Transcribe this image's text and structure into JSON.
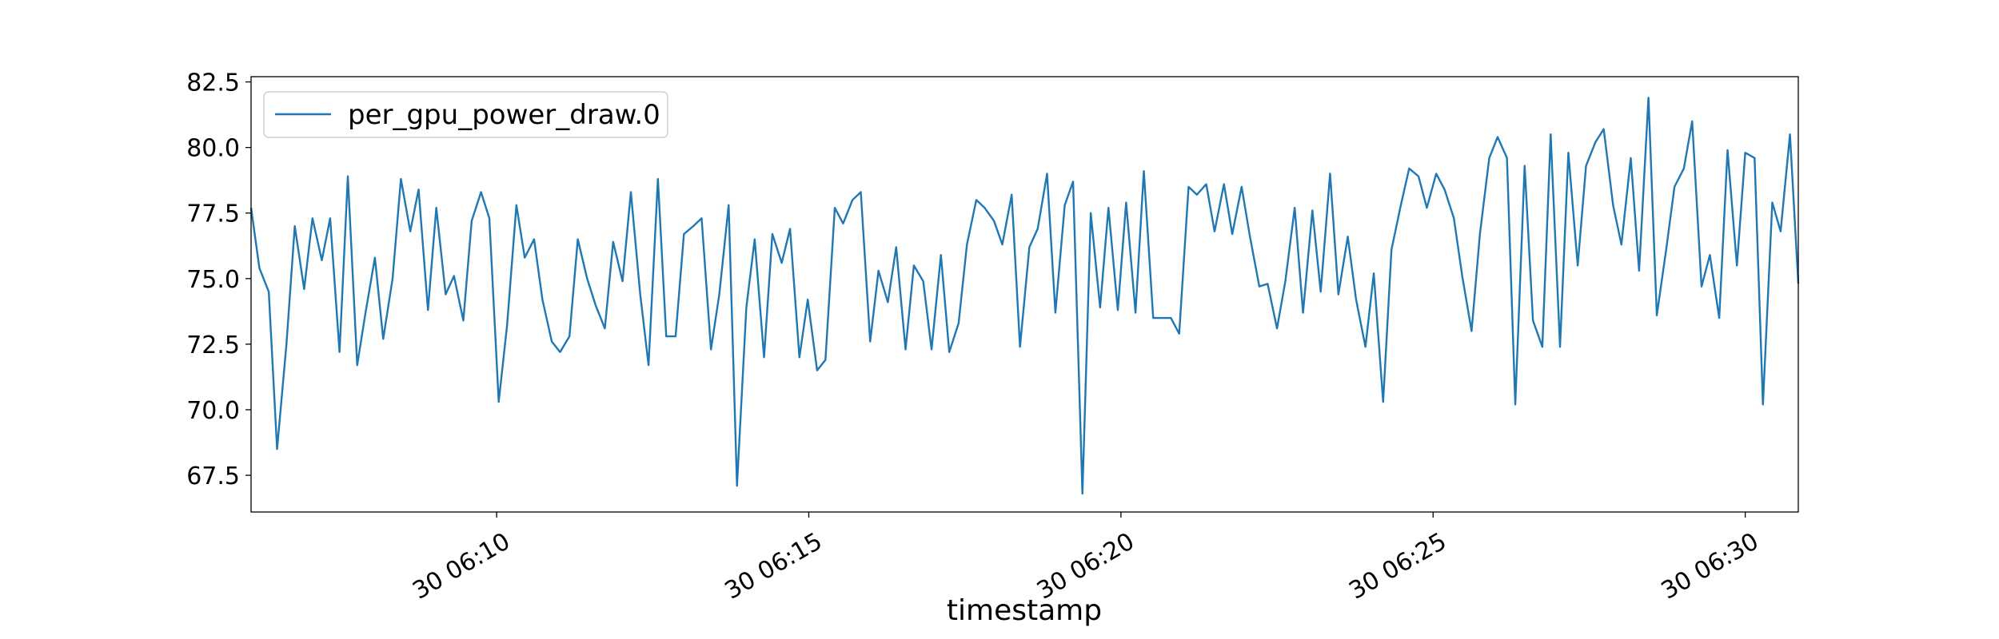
{
  "chart_data": {
    "type": "line",
    "x_label": "timestamp",
    "x": [
      "30 06:06:04",
      "30 06:06:12",
      "30 06:06:21",
      "30 06:06:29",
      "30 06:06:38",
      "30 06:06:46",
      "30 06:06:55",
      "30 06:07:03",
      "30 06:07:12",
      "30 06:07:20",
      "30 06:07:29",
      "30 06:07:37",
      "30 06:07:46",
      "30 06:07:54",
      "30 06:08:03",
      "30 06:08:11",
      "30 06:08:20",
      "30 06:08:28",
      "30 06:08:37",
      "30 06:08:45",
      "30 06:08:54",
      "30 06:09:02",
      "30 06:09:11",
      "30 06:09:19",
      "30 06:09:28",
      "30 06:09:36",
      "30 06:09:45",
      "30 06:09:53",
      "30 06:10:02",
      "30 06:10:10",
      "30 06:10:19",
      "30 06:10:27",
      "30 06:10:36",
      "30 06:10:44",
      "30 06:10:53",
      "30 06:11:01",
      "30 06:11:10",
      "30 06:11:18",
      "30 06:11:27",
      "30 06:11:35",
      "30 06:11:44",
      "30 06:11:52",
      "30 06:12:01",
      "30 06:12:09",
      "30 06:12:18",
      "30 06:12:26",
      "30 06:12:35",
      "30 06:12:43",
      "30 06:12:52",
      "30 06:13:00",
      "30 06:13:09",
      "30 06:13:17",
      "30 06:13:26",
      "30 06:13:34",
      "30 06:13:43",
      "30 06:13:51",
      "30 06:14:00",
      "30 06:14:08",
      "30 06:14:17",
      "30 06:14:25",
      "30 06:14:34",
      "30 06:14:42",
      "30 06:14:51",
      "30 06:14:59",
      "30 06:15:08",
      "30 06:15:16",
      "30 06:15:25",
      "30 06:15:33",
      "30 06:15:42",
      "30 06:15:50",
      "30 06:15:59",
      "30 06:16:07",
      "30 06:16:16",
      "30 06:16:24",
      "30 06:16:33",
      "30 06:16:41",
      "30 06:16:50",
      "30 06:16:58",
      "30 06:17:07",
      "30 06:17:15",
      "30 06:17:24",
      "30 06:17:32",
      "30 06:17:41",
      "30 06:17:49",
      "30 06:17:58",
      "30 06:18:06",
      "30 06:18:15",
      "30 06:18:23",
      "30 06:18:32",
      "30 06:18:40",
      "30 06:18:49",
      "30 06:18:57",
      "30 06:19:06",
      "30 06:19:14",
      "30 06:19:23",
      "30 06:19:31",
      "30 06:19:40",
      "30 06:19:48",
      "30 06:19:57",
      "30 06:20:05",
      "30 06:20:14",
      "30 06:20:22",
      "30 06:20:31",
      "30 06:20:39",
      "30 06:20:48",
      "30 06:20:56",
      "30 06:21:05",
      "30 06:21:13",
      "30 06:21:22",
      "30 06:21:30",
      "30 06:21:39",
      "30 06:21:47",
      "30 06:21:56",
      "30 06:22:04",
      "30 06:22:13",
      "30 06:22:21",
      "30 06:22:30",
      "30 06:22:38",
      "30 06:22:47",
      "30 06:22:55",
      "30 06:23:04",
      "30 06:23:12",
      "30 06:23:21",
      "30 06:23:29",
      "30 06:23:38",
      "30 06:23:46",
      "30 06:23:55",
      "30 06:24:03",
      "30 06:24:12",
      "30 06:24:20",
      "30 06:24:29",
      "30 06:24:37",
      "30 06:24:46",
      "30 06:24:54",
      "30 06:25:03",
      "30 06:25:11",
      "30 06:25:20",
      "30 06:25:28",
      "30 06:25:37",
      "30 06:25:45",
      "30 06:25:54",
      "30 06:26:02",
      "30 06:26:11",
      "30 06:26:19",
      "30 06:26:28",
      "30 06:26:36",
      "30 06:26:45",
      "30 06:26:53",
      "30 06:27:02",
      "30 06:27:10",
      "30 06:27:19",
      "30 06:27:27",
      "30 06:27:36",
      "30 06:27:44",
      "30 06:27:53",
      "30 06:28:01",
      "30 06:28:10",
      "30 06:28:18",
      "30 06:28:27",
      "30 06:28:35",
      "30 06:28:44",
      "30 06:28:52",
      "30 06:29:01",
      "30 06:29:09",
      "30 06:29:18",
      "30 06:29:26",
      "30 06:29:35",
      "30 06:29:43",
      "30 06:29:52",
      "30 06:30:00",
      "30 06:30:09",
      "30 06:30:17",
      "30 06:30:26",
      "30 06:30:34",
      "30 06:30:43",
      "30 06:30:51"
    ],
    "series": [
      {
        "name": "per_gpu_power_draw.0",
        "color": "#1f77b4",
        "values": [
          77.7,
          75.4,
          74.5,
          68.5,
          72.5,
          77.0,
          74.6,
          77.3,
          75.7,
          77.3,
          72.2,
          78.9,
          71.7,
          73.7,
          75.8,
          72.7,
          75.0,
          78.8,
          76.8,
          78.4,
          73.8,
          77.7,
          74.4,
          75.1,
          73.4,
          77.2,
          78.3,
          77.3,
          70.3,
          73.2,
          77.8,
          75.8,
          76.5,
          74.2,
          72.6,
          72.2,
          72.8,
          76.5,
          75.0,
          74.0,
          73.1,
          76.4,
          74.9,
          78.3,
          74.4,
          71.7,
          78.8,
          72.8,
          72.8,
          76.7,
          77.0,
          77.3,
          72.3,
          74.4,
          77.8,
          67.1,
          73.9,
          76.5,
          72.0,
          76.7,
          75.6,
          76.9,
          72.0,
          74.2,
          71.5,
          71.9,
          77.7,
          77.1,
          78.0,
          78.3,
          72.6,
          75.3,
          74.1,
          76.2,
          72.3,
          75.5,
          74.9,
          72.3,
          75.9,
          72.2,
          73.3,
          76.3,
          78.0,
          77.7,
          77.2,
          76.3,
          78.2,
          72.4,
          76.2,
          76.9,
          79.0,
          73.7,
          77.8,
          78.7,
          66.8,
          77.5,
          73.9,
          77.7,
          73.8,
          77.9,
          73.7,
          79.1,
          73.5,
          73.5,
          73.5,
          72.9,
          78.5,
          78.2,
          78.6,
          76.8,
          78.6,
          76.7,
          78.5,
          76.6,
          74.7,
          74.8,
          73.1,
          74.9,
          77.7,
          73.7,
          77.6,
          74.5,
          79.0,
          74.4,
          76.6,
          74.2,
          72.4,
          75.2,
          70.3,
          76.1,
          77.8,
          79.2,
          78.9,
          77.7,
          79.0,
          78.4,
          77.3,
          75.1,
          73.0,
          76.7,
          79.6,
          80.4,
          79.6,
          70.2,
          79.3,
          73.4,
          72.4,
          80.5,
          72.4,
          79.8,
          75.5,
          79.3,
          80.2,
          80.7,
          77.8,
          76.3,
          79.6,
          75.3,
          81.9,
          73.6,
          76.1,
          78.5,
          79.2,
          81.0,
          74.7,
          75.9,
          73.5,
          79.9,
          75.5,
          79.8,
          79.6,
          70.2,
          77.9,
          76.8,
          80.5,
          74.8
        ]
      }
    ],
    "xlim": [
      "30 06:06:04",
      "30 06:30:51"
    ],
    "xticks": [
      {
        "value": "30 06:10:00",
        "label": "30 06:10"
      },
      {
        "value": "30 06:15:00",
        "label": "30 06:15"
      },
      {
        "value": "30 06:20:00",
        "label": "30 06:20"
      },
      {
        "value": "30 06:25:00",
        "label": "30 06:25"
      },
      {
        "value": "30 06:30:00",
        "label": "30 06:30"
      }
    ],
    "ylim": [
      66.1,
      82.7
    ],
    "yticks": [
      67.5,
      {
        "value": 70,
        "label": "70.0"
      },
      72.5,
      {
        "value": 75,
        "label": "75.0"
      },
      77.5,
      {
        "value": 80,
        "label": "80.0"
      },
      82.5
    ],
    "grid": false,
    "legend": "upper left"
  }
}
